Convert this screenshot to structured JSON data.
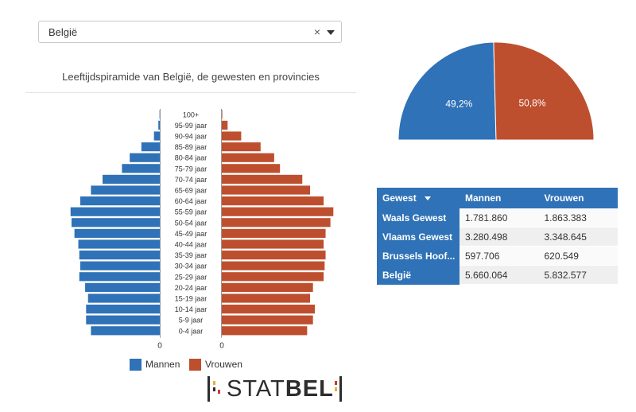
{
  "select": {
    "value": "België",
    "clear_icon": "×"
  },
  "pyramid": {
    "title": "Leeftijdspiramide van België, de gewesten en provincies",
    "axis_zero_left": "0",
    "axis_zero_right": "0",
    "legend": {
      "men": "Mannen",
      "women": "Vrouwen"
    }
  },
  "colors": {
    "men": "#2f72b7",
    "women": "#be4f2e"
  },
  "chart_data": [
    {
      "type": "bar",
      "title": "Leeftijdspiramide van België, de gewesten en provincies",
      "categories": [
        "100+",
        "95-99 jaar",
        "90-94 jaar",
        "85-89 jaar",
        "80-84 jaar",
        "75-79 jaar",
        "70-74 jaar",
        "65-69 jaar",
        "60-64 jaar",
        "55-59 jaar",
        "50-54 jaar",
        "45-49 jaar",
        "40-44 jaar",
        "35-39 jaar",
        "30-34 jaar",
        "25-29 jaar",
        "20-24 jaar",
        "15-19 jaar",
        "10-14 jaar",
        "5-9 jaar",
        "0-4 jaar"
      ],
      "series": [
        {
          "name": "Mannen",
          "values": [
            0.3,
            1.5,
            6,
            19,
            31,
            39,
            59,
            71,
            82,
            92,
            91,
            88,
            84,
            83,
            82,
            83,
            77,
            74,
            76,
            76,
            71
          ]
        },
        {
          "name": "Vrouwen",
          "values": [
            0.5,
            6,
            20,
            40,
            54,
            60,
            83,
            91,
            105,
            115,
            112,
            107,
            105,
            107,
            106,
            105,
            94,
            91,
            96,
            94,
            88
          ]
        }
      ],
      "units": "thousands"
    },
    {
      "type": "pie",
      "labels": [
        "Mannen",
        "Vrouwen"
      ],
      "values": [
        49.2,
        50.8
      ],
      "value_labels": [
        "49,2%",
        "50,8%"
      ]
    }
  ],
  "table": {
    "headers": [
      "Gewest",
      "Mannen",
      "Vrouwen"
    ],
    "rows": [
      [
        "Waals Gewest",
        "1.781.860",
        "1.863.383"
      ],
      [
        "Vlaams Gewest",
        "3.280.498",
        "3.348.645"
      ],
      [
        "Brussels Hoof...",
        "597.706",
        "620.549"
      ],
      [
        "België",
        "5.660.064",
        "5.832.577"
      ]
    ]
  },
  "logo": {
    "text_light": "STAT",
    "text_bold": "BEL"
  }
}
